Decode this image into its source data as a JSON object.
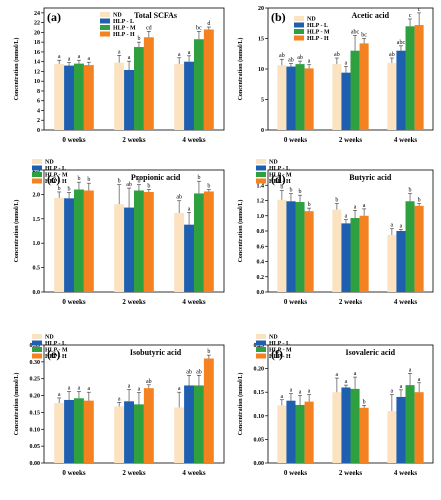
{
  "colors": {
    "ND": "#fbe3c1",
    "HLP-L": "#1f5fb0",
    "HLP-M": "#2ea040",
    "HLP-H": "#f58220",
    "axis": "#000000",
    "err": "#333333"
  },
  "chart_data": [
    {
      "type": "bar",
      "panel_label": "(a)",
      "title": "Total SCFAs",
      "xlabel": "",
      "ylabel": "Concentration (mmol/L)",
      "categories": [
        "0 weeks",
        "2 weeks",
        "4 weeks"
      ],
      "ylim": [
        0,
        25
      ],
      "yticks": [
        0,
        2,
        4,
        6,
        8,
        10,
        12,
        14,
        16,
        18,
        20,
        22,
        24
      ],
      "ytick_labels": [
        "0",
        "2",
        "4",
        "6",
        "8",
        "10",
        "12",
        "14",
        "16",
        "18",
        "20",
        "22",
        "24"
      ],
      "legend": [
        "ND",
        "HLP - L",
        "HLP - M",
        "HLP - H"
      ],
      "legend_position": "top-left",
      "series": [
        {
          "name": "ND",
          "values": [
            13.5,
            13.8,
            13.5
          ],
          "errors": [
            0.8,
            1.5,
            1.3
          ],
          "labels": [
            "a",
            "a",
            "a"
          ]
        },
        {
          "name": "HLP - L",
          "values": [
            13.2,
            12.3,
            14.0
          ],
          "errors": [
            0.6,
            1.8,
            1.2
          ],
          "labels": [
            "a",
            "a",
            "a"
          ]
        },
        {
          "name": "HLP - M",
          "values": [
            13.6,
            17.0,
            18.6
          ],
          "errors": [
            0.7,
            1.0,
            1.6
          ],
          "labels": [
            "a",
            "b",
            "bc"
          ]
        },
        {
          "name": "HLP - H",
          "values": [
            13.3,
            19.0,
            20.6
          ],
          "errors": [
            0.6,
            1.2,
            0.5
          ],
          "labels": [
            "a",
            "cd",
            "d"
          ]
        }
      ]
    },
    {
      "type": "bar",
      "panel_label": "(b)",
      "title": "Acetic acid",
      "xlabel": "",
      "ylabel": "Concentration (mmol/L)",
      "categories": [
        "0 weeks",
        "2 weeks",
        "4 weeks"
      ],
      "ylim": [
        0,
        20
      ],
      "yticks": [
        0,
        5,
        10,
        15,
        20
      ],
      "ytick_labels": [
        "0",
        "5",
        "10",
        "15",
        "20"
      ],
      "legend": [
        "ND",
        "HLP - L",
        "HLP - M",
        "HLP - H"
      ],
      "legend_position": "top-left",
      "series": [
        {
          "name": "ND",
          "values": [
            10.6,
            10.8,
            11.0
          ],
          "errors": [
            1.0,
            1.0,
            0.8
          ],
          "labels": [
            "ab",
            "ab",
            "ab"
          ]
        },
        {
          "name": "HLP - L",
          "values": [
            10.4,
            9.4,
            13.0
          ],
          "errors": [
            0.5,
            1.0,
            0.8
          ],
          "labels": [
            "ab",
            "a",
            "abc"
          ]
        },
        {
          "name": "HLP - M",
          "values": [
            10.8,
            13.0,
            17.0
          ],
          "errors": [
            0.5,
            2.5,
            1.2
          ],
          "labels": [
            "ab",
            "abc",
            "c"
          ]
        },
        {
          "name": "HLP - H",
          "values": [
            10.1,
            14.2,
            17.2
          ],
          "errors": [
            0.6,
            0.8,
            2.0
          ],
          "labels": [
            "a",
            "bc",
            "c"
          ]
        }
      ]
    },
    {
      "type": "bar",
      "panel_label": "(c)",
      "title": "Propionic acid",
      "xlabel": "",
      "ylabel": "Concentration (mmol/L)",
      "categories": [
        "0 weeks",
        "2 weeks",
        "4 weeks"
      ],
      "ylim": [
        0,
        2.5
      ],
      "yticks": [
        0,
        0.5,
        1.0,
        1.5,
        2.0,
        2.5
      ],
      "ytick_labels": [
        "0.0",
        "0.5",
        "1.0",
        "1.5",
        "2.0",
        "2.5"
      ],
      "legend": [
        "ND",
        "HLP - L",
        "HLP - M",
        "HLP - H"
      ],
      "legend_position": "top-left",
      "series": [
        {
          "name": "ND",
          "values": [
            1.93,
            1.8,
            1.62
          ],
          "errors": [
            0.12,
            0.4,
            0.25
          ],
          "labels": [
            "b",
            "b",
            "ab"
          ]
        },
        {
          "name": "HLP - L",
          "values": [
            1.92,
            1.73,
            1.38
          ],
          "errors": [
            0.12,
            0.4,
            0.25
          ],
          "labels": [
            "b",
            "ab",
            "a"
          ]
        },
        {
          "name": "HLP - M",
          "values": [
            2.1,
            2.08,
            2.02
          ],
          "errors": [
            0.15,
            0.12,
            0.25
          ],
          "labels": [
            "b",
            "b",
            "b"
          ]
        },
        {
          "name": "HLP - H",
          "values": [
            2.08,
            2.05,
            2.06
          ],
          "errors": [
            0.15,
            0.05,
            0.04
          ],
          "labels": [
            "b",
            "b",
            "b"
          ]
        }
      ]
    },
    {
      "type": "bar",
      "panel_label": "(d)",
      "title": "Butyric acid",
      "xlabel": "",
      "ylabel": "Concentration (mmol/L)",
      "categories": [
        "0 weeks",
        "2 weeks",
        "4 weeks"
      ],
      "ylim": [
        0,
        1.6
      ],
      "yticks": [
        0,
        0.2,
        0.4,
        0.6,
        0.8,
        1.0,
        1.2,
        1.4
      ],
      "ytick_labels": [
        "0.0",
        "0.2",
        "0.4",
        "0.6",
        "0.8",
        "1.0",
        "1.2",
        "1.4"
      ],
      "legend": [
        "ND",
        "HLP - L",
        "HLP - M",
        "HLP - H"
      ],
      "legend_position": "top-left",
      "series": [
        {
          "name": "ND",
          "values": [
            1.21,
            1.08,
            0.75
          ],
          "errors": [
            0.12,
            0.08,
            0.08
          ],
          "labels": [
            "b",
            "b",
            "a"
          ]
        },
        {
          "name": "HLP - L",
          "values": [
            1.19,
            0.9,
            0.8
          ],
          "errors": [
            0.1,
            0.05,
            0.02
          ],
          "labels": [
            "b",
            "a",
            "a"
          ]
        },
        {
          "name": "HLP - M",
          "values": [
            1.18,
            0.97,
            1.19
          ],
          "errors": [
            0.09,
            0.1,
            0.1
          ],
          "labels": [
            "b",
            "a",
            "b"
          ]
        },
        {
          "name": "HLP - H",
          "values": [
            1.06,
            1.0,
            1.13
          ],
          "errors": [
            0.04,
            0.09,
            0.03
          ],
          "labels": [
            "b",
            "a",
            "b"
          ]
        }
      ]
    },
    {
      "type": "bar",
      "panel_label": "(e)",
      "title": "Isobutyric acid",
      "xlabel": "",
      "ylabel": "Concentration (mmol/L)",
      "categories": [
        "0 weeks",
        "2 weeks",
        "4 weeks"
      ],
      "ylim": [
        0,
        0.35
      ],
      "yticks": [
        0,
        0.05,
        0.1,
        0.15,
        0.2,
        0.25,
        0.3,
        0.35
      ],
      "ytick_labels": [
        "0.00",
        "0.05",
        "0.10",
        "0.15",
        "0.20",
        "0.25",
        "0.30",
        "0.35"
      ],
      "legend": [
        "ND",
        "HLP - L",
        "HLP - M",
        "HLP - H"
      ],
      "legend_position": "top-left",
      "series": [
        {
          "name": "ND",
          "values": [
            0.178,
            0.168,
            0.165
          ],
          "errors": [
            0.015,
            0.012,
            0.045
          ],
          "labels": [
            "a",
            "a",
            "a"
          ]
        },
        {
          "name": "HLP - L",
          "values": [
            0.187,
            0.183,
            0.23
          ],
          "errors": [
            0.025,
            0.035,
            0.03
          ],
          "labels": [
            "a",
            "a",
            "ab"
          ]
        },
        {
          "name": "HLP - M",
          "values": [
            0.192,
            0.174,
            0.23
          ],
          "errors": [
            0.02,
            0.035,
            0.03
          ],
          "labels": [
            "a",
            "a",
            "ab"
          ]
        },
        {
          "name": "HLP - H",
          "values": [
            0.185,
            0.222,
            0.31
          ],
          "errors": [
            0.025,
            0.01,
            0.01
          ],
          "labels": [
            "a",
            "ab",
            "b"
          ]
        }
      ]
    },
    {
      "type": "bar",
      "panel_label": "(f)",
      "title": "Isovaleric acid",
      "xlabel": "",
      "ylabel": "Concentration (mmol/L)",
      "categories": [
        "0 weeks",
        "2 weeks",
        "4 weeks"
      ],
      "ylim": [
        0,
        0.25
      ],
      "yticks": [
        0,
        0.05,
        0.1,
        0.15,
        0.2,
        0.25
      ],
      "ytick_labels": [
        "0.00",
        "0.05",
        "0.10",
        "0.15",
        "0.20",
        "0.25"
      ],
      "legend": [
        "ND",
        "HLP - L",
        "HLP - M",
        "HLP - H"
      ],
      "legend_position": "top-left",
      "series": [
        {
          "name": "ND",
          "values": [
            0.122,
            0.15,
            0.11
          ],
          "errors": [
            0.012,
            0.03,
            0.035
          ],
          "labels": [
            "a",
            "a",
            "a"
          ]
        },
        {
          "name": "HLP - L",
          "values": [
            0.132,
            0.16,
            0.14
          ],
          "errors": [
            0.015,
            0.005,
            0.015
          ],
          "labels": [
            "a",
            "a",
            "a"
          ]
        },
        {
          "name": "HLP - M",
          "values": [
            0.123,
            0.157,
            0.165
          ],
          "errors": [
            0.02,
            0.025,
            0.025
          ],
          "labels": [
            "a",
            "a",
            "a"
          ]
        },
        {
          "name": "HLP - H",
          "values": [
            0.13,
            0.117,
            0.15
          ],
          "errors": [
            0.015,
            0.005,
            0.02
          ],
          "labels": [
            "a",
            "b",
            "a"
          ]
        }
      ]
    }
  ]
}
